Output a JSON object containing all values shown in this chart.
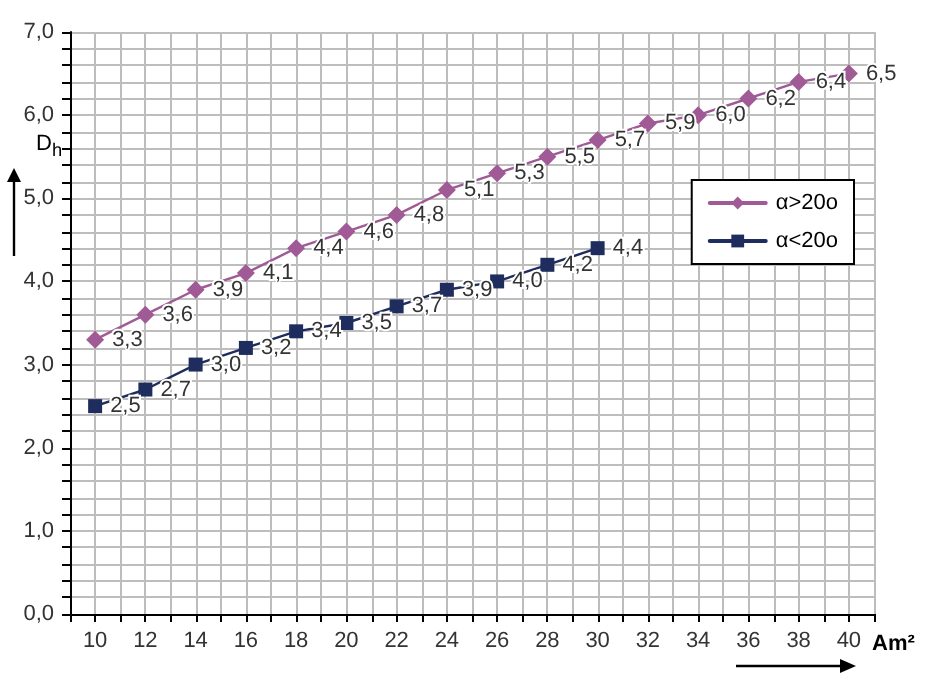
{
  "chart_data": {
    "type": "line",
    "xlabel": "Am²",
    "ylabel": "D$_{h}$",
    "xlim": [
      9,
      41
    ],
    "xticks": [
      {
        "value": 9,
        "label": null
      },
      10,
      {
        "value": 11,
        "label": null
      },
      12,
      {
        "value": 13,
        "label": null
      },
      14,
      {
        "value": 15,
        "label": null
      },
      16,
      {
        "value": 17,
        "label": null
      },
      18,
      {
        "value": 19,
        "label": null
      },
      20,
      {
        "value": 21,
        "label": null
      },
      22,
      {
        "value": 23,
        "label": null
      },
      24,
      {
        "value": 25,
        "label": null
      },
      26,
      {
        "value": 27,
        "label": null
      },
      28,
      {
        "value": 29,
        "label": null
      },
      30,
      {
        "value": 31,
        "label": null
      },
      32,
      {
        "value": 33,
        "label": null
      },
      34,
      {
        "value": 35,
        "label": null
      },
      36,
      {
        "value": 37,
        "label": null
      },
      38,
      {
        "value": 39,
        "label": null
      },
      40,
      {
        "value": 41,
        "label": null
      }
    ],
    "ylim": [
      0,
      7
    ],
    "yticks": [
      {
        "value": 0,
        "label": "0,0"
      },
      {
        "value": 0.2,
        "label": null
      },
      {
        "value": 0.4,
        "label": null
      },
      {
        "value": 0.6,
        "label": null
      },
      {
        "value": 0.8,
        "label": null
      },
      {
        "value": 1,
        "label": "1,0"
      },
      {
        "value": 1.2,
        "label": null
      },
      {
        "value": 1.4,
        "label": null
      },
      {
        "value": 1.6,
        "label": null
      },
      {
        "value": 1.8,
        "label": null
      },
      {
        "value": 2,
        "label": "2,0"
      },
      {
        "value": 2.2,
        "label": null
      },
      {
        "value": 2.4,
        "label": null
      },
      {
        "value": 2.6,
        "label": null
      },
      {
        "value": 2.8,
        "label": null
      },
      {
        "value": 3,
        "label": "3,0"
      },
      {
        "value": 3.2,
        "label": null
      },
      {
        "value": 3.4,
        "label": null
      },
      {
        "value": 3.6,
        "label": null
      },
      {
        "value": 3.8,
        "label": null
      },
      {
        "value": 4,
        "label": "4,0"
      },
      {
        "value": 4.2,
        "label": null
      },
      {
        "value": 4.4,
        "label": null
      },
      {
        "value": 4.6,
        "label": null
      },
      {
        "value": 4.8,
        "label": null
      },
      {
        "value": 5,
        "label": "5,0"
      },
      {
        "value": 5.2,
        "label": null
      },
      {
        "value": 5.4,
        "label": null
      },
      {
        "value": 5.6,
        "label": null
      },
      {
        "value": 5.8,
        "label": null
      },
      {
        "value": 6,
        "label": "6,0"
      },
      {
        "value": 6.2,
        "label": null
      },
      {
        "value": 6.4,
        "label": null
      },
      {
        "value": 6.6,
        "label": null
      },
      {
        "value": 6.8,
        "label": null
      },
      {
        "value": 7,
        "label": "7,0"
      }
    ],
    "grid": true,
    "legend": "right",
    "line_style": "solid",
    "series": [
      {
        "name": "α>20o",
        "color": "#a05a95",
        "marker": "diamond",
        "x": [
          10,
          12,
          14,
          16,
          18,
          20,
          22,
          24,
          26,
          28,
          30,
          32,
          34,
          36,
          38,
          40
        ],
        "values": [
          3.3,
          3.6,
          3.9,
          4.1,
          4.4,
          4.6,
          4.8,
          5.1,
          5.3,
          5.5,
          5.7,
          5.9,
          6.0,
          6.2,
          6.4,
          6.5
        ],
        "value_labels": [
          "3,3",
          "3,6",
          "3,9",
          "4,1",
          "4,4",
          "4,6",
          "4,8",
          "5,1",
          "5,3",
          "5,5",
          "5,7",
          "5,9",
          "6,0",
          "6,2",
          "6,4",
          "6,5"
        ]
      },
      {
        "name": "α<20o",
        "color": "#1f2d5e",
        "marker": "square",
        "x": [
          10,
          12,
          14,
          16,
          18,
          20,
          22,
          24,
          26,
          28,
          30
        ],
        "values": [
          2.5,
          2.7,
          3.0,
          3.2,
          3.4,
          3.5,
          3.7,
          3.9,
          4.0,
          4.2,
          4.4
        ],
        "value_labels": [
          "2,5",
          "2,7",
          "3,0",
          "3,2",
          "3,4",
          "3,5",
          "3,7",
          "3,9",
          "4,0",
          "4,2",
          "4,4"
        ]
      }
    ]
  }
}
